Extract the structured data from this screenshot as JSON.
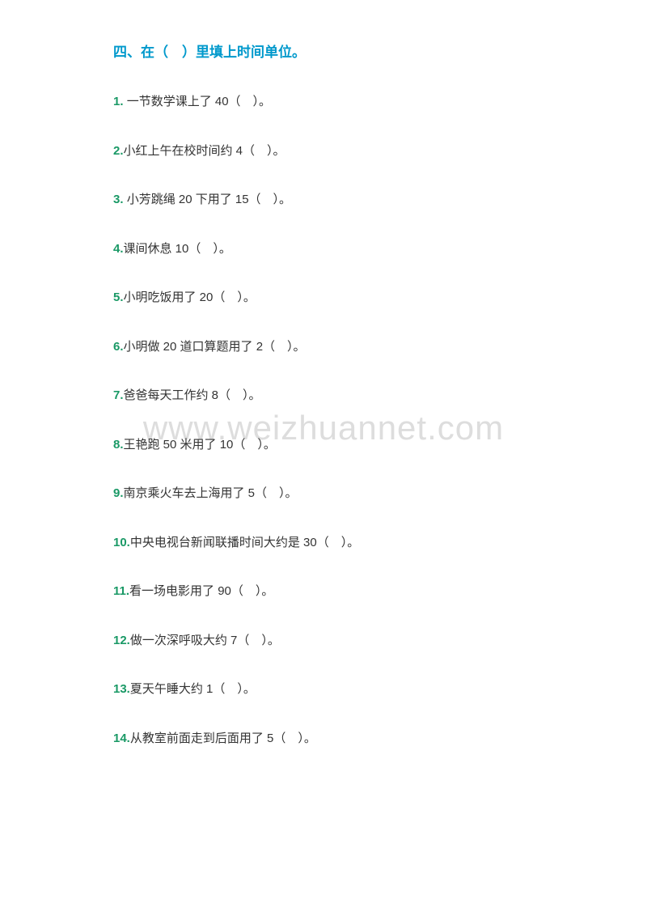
{
  "heading": "四、在（　）里填上时间单位。",
  "watermark": "www.weizhuannet.com",
  "questions": [
    {
      "num": "1. ",
      "text": "一节数学课上了 40（　）。"
    },
    {
      "num": "2.",
      "text": "小红上午在校时间约 4（　）。"
    },
    {
      "num": "3. ",
      "text": "小芳跳绳 20 下用了 15（　）。"
    },
    {
      "num": "4.",
      "text": "课间休息 10（　）。"
    },
    {
      "num": "5.",
      "text": "小明吃饭用了 20（　）。"
    },
    {
      "num": "6.",
      "text": "小明做 20 道口算题用了 2（　）。"
    },
    {
      "num": "7.",
      "text": "爸爸每天工作约 8（　）。"
    },
    {
      "num": "8.",
      "text": "王艳跑 50 米用了 10（　）。"
    },
    {
      "num": "9.",
      "text": "南京乘火车去上海用了 5（　）。"
    },
    {
      "num": "10.",
      "text": "中央电视台新闻联播时间大约是 30（　）。"
    },
    {
      "num": "11.",
      "text": "看一场电影用了 90（　）。"
    },
    {
      "num": "12.",
      "text": "做一次深呼吸大约 7（　）。"
    },
    {
      "num": "13.",
      "text": "夏天午睡大约 1（　）。"
    },
    {
      "num": "14.",
      "text": "从教室前面走到后面用了 5（　）。"
    }
  ],
  "colors": {
    "heading": "#0099cc",
    "questionNumber": "#1a9966",
    "questionText": "#333333",
    "watermark": "#dddddd",
    "background": "#ffffff"
  },
  "typography": {
    "headingFontSize": 17,
    "questionFontSize": 15,
    "watermarkFontSize": 42
  }
}
